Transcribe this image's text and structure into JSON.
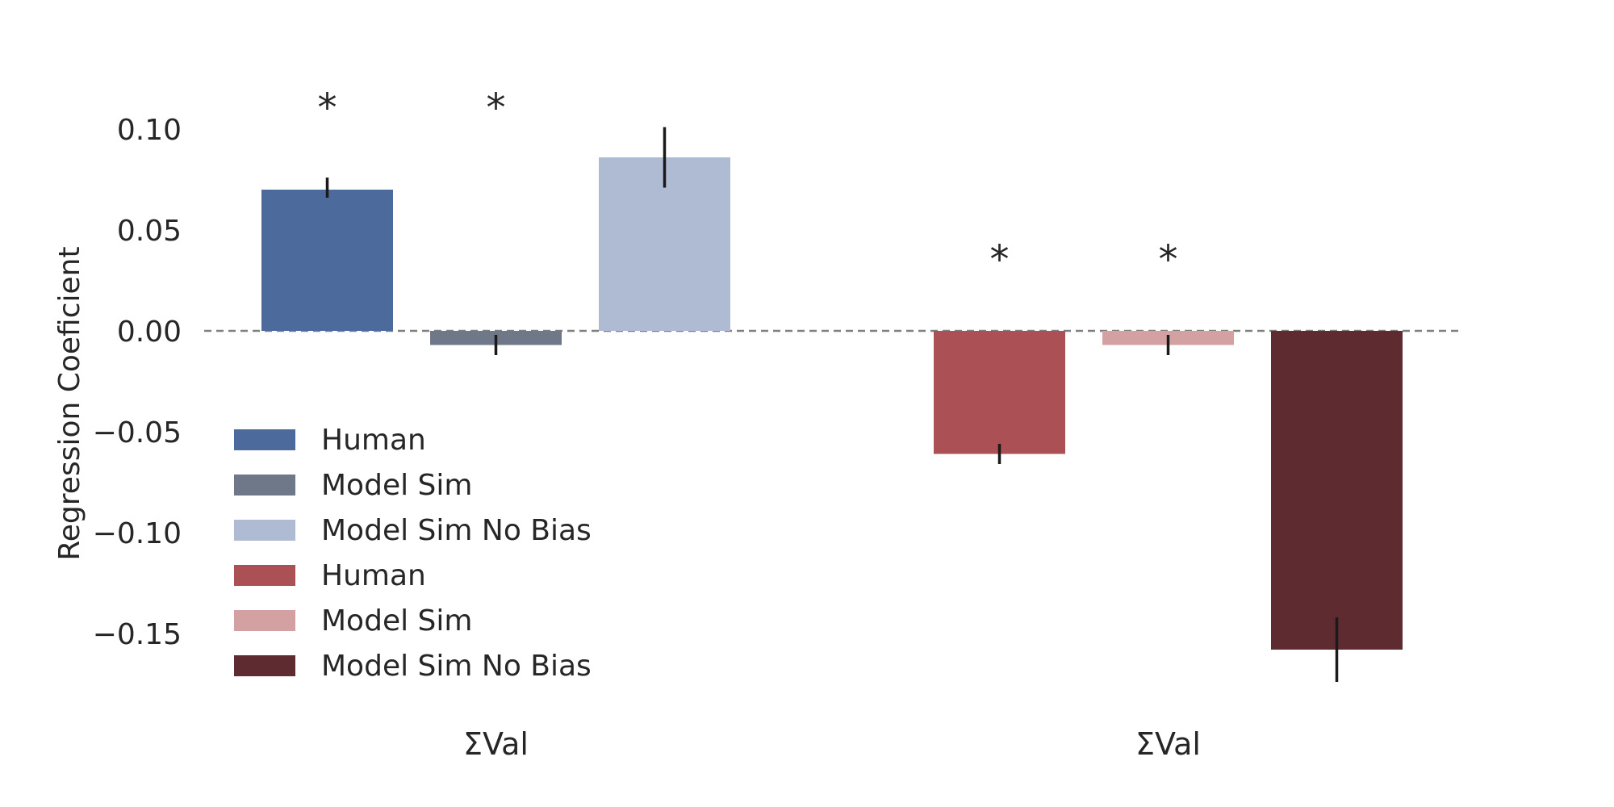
{
  "chart_data": {
    "type": "bar",
    "title": "",
    "ylabel": "Regression Coeficient",
    "xlabel": "",
    "ylim": [
      -0.175,
      0.12
    ],
    "yticks": [
      0.1,
      0.05,
      0.0,
      -0.05,
      -0.1,
      -0.15
    ],
    "ytick_labels": [
      "0.10",
      "0.05",
      "0.00",
      "−0.05",
      "−0.10",
      "−0.15"
    ],
    "grid": false,
    "zero_line": {
      "value": 0,
      "style": "dashed",
      "color": "#808080"
    },
    "legend_position": "lower-left",
    "significance_marker": "*",
    "groups": [
      {
        "label": "ΣVal",
        "bars": [
          {
            "name": "Human",
            "value": 0.07,
            "err_low": 0.066,
            "err_high": 0.076,
            "color": "#4c6a9c",
            "significant": true
          },
          {
            "name": "Model Sim",
            "value": -0.007,
            "err_low": -0.012,
            "err_high": -0.002,
            "color": "#6f7889",
            "significant": true
          },
          {
            "name": "Model Sim No Bias",
            "value": 0.086,
            "err_low": 0.071,
            "err_high": 0.101,
            "color": "#aebbd3",
            "significant": false
          }
        ]
      },
      {
        "label": "ΣVal",
        "bars": [
          {
            "name": "Human",
            "value": -0.061,
            "err_low": -0.066,
            "err_high": -0.056,
            "color": "#ab5055",
            "significant": true
          },
          {
            "name": "Model Sim",
            "value": -0.007,
            "err_low": -0.012,
            "err_high": -0.002,
            "color": "#d4a1a3",
            "significant": true
          },
          {
            "name": "Model Sim No Bias",
            "value": -0.158,
            "err_low": -0.174,
            "err_high": -0.142,
            "color": "#5e2c30",
            "significant": false
          }
        ]
      }
    ],
    "legend": [
      {
        "label": "Human",
        "color": "#4c6a9c"
      },
      {
        "label": "Model Sim",
        "color": "#6f7889"
      },
      {
        "label": "Model Sim No Bias",
        "color": "#aebbd3"
      },
      {
        "label": "Human",
        "color": "#ab5055"
      },
      {
        "label": "Model Sim",
        "color": "#d4a1a3"
      },
      {
        "label": "Model Sim No Bias",
        "color": "#5e2c30"
      }
    ]
  }
}
